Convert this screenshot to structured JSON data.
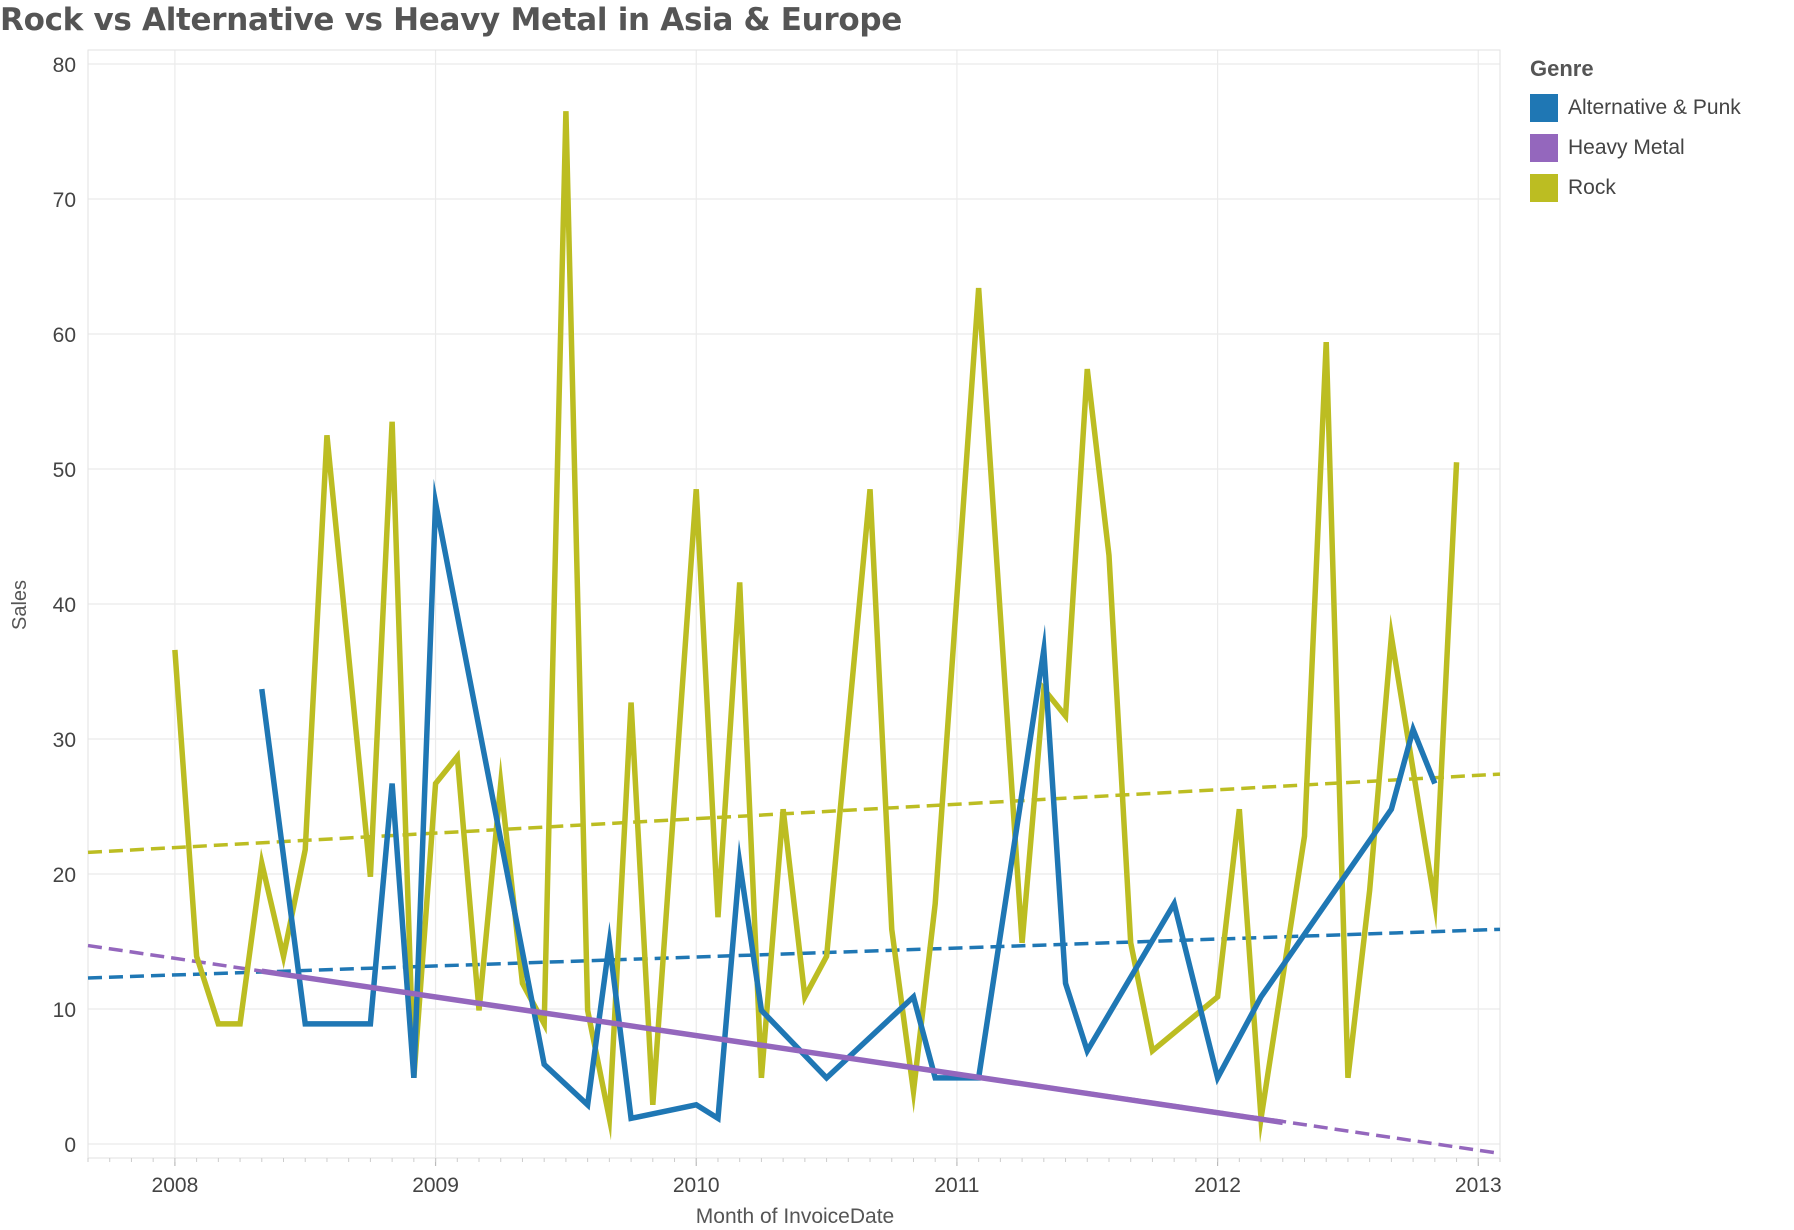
{
  "chart_data": {
    "type": "line",
    "title": "Rock vs Alternative vs Heavy Metal in Asia & Europe",
    "xlabel": "Month of InvoiceDate",
    "ylabel": "Sales",
    "x_ticks": [
      "2008",
      "2009",
      "2010",
      "2011",
      "2012",
      "2013"
    ],
    "y_ticks": [
      "0",
      "10",
      "20",
      "30",
      "40",
      "50",
      "60",
      "70",
      "80"
    ],
    "ylim": [
      0,
      80
    ],
    "xlim": [
      "2007-09",
      "2013-02"
    ],
    "grid": true,
    "legend": {
      "title": "Genre",
      "position": "right"
    },
    "series": [
      {
        "name": "Alternative & Punk",
        "color": "#1f77b4",
        "points": [
          [
            "2008-05",
            33.7
          ],
          [
            "2008-07",
            8.9
          ],
          [
            "2008-09",
            8.9
          ],
          [
            "2008-10",
            8.9
          ],
          [
            "2008-11",
            26.7
          ],
          [
            "2008-12",
            4.9
          ],
          [
            "2009-01",
            47.5
          ],
          [
            "2009-06",
            5.9
          ],
          [
            "2009-08",
            2.9
          ],
          [
            "2009-09",
            14.9
          ],
          [
            "2009-10",
            1.9
          ],
          [
            "2010-01",
            2.9
          ],
          [
            "2010-02",
            1.9
          ],
          [
            "2010-03",
            20.8
          ],
          [
            "2010-04",
            9.9
          ],
          [
            "2010-07",
            4.9
          ],
          [
            "2010-11",
            10.9
          ],
          [
            "2010-12",
            4.9
          ],
          [
            "2011-02",
            4.9
          ],
          [
            "2011-05",
            36.6
          ],
          [
            "2011-06",
            11.9
          ],
          [
            "2011-07",
            6.9
          ],
          [
            "2011-11",
            17.8
          ],
          [
            "2012-01",
            4.9
          ],
          [
            "2012-03",
            10.9
          ],
          [
            "2012-09",
            24.8
          ],
          [
            "2012-10",
            30.7
          ],
          [
            "2012-11",
            26.7
          ]
        ],
        "trend": {
          "start": [
            "2007-09",
            12.3
          ],
          "end": [
            "2013-02",
            15.9
          ]
        }
      },
      {
        "name": "Heavy Metal",
        "color": "#9467bd",
        "points": [
          [
            "2008-05",
            12.8
          ],
          [
            "2012-04",
            1.6
          ]
        ],
        "trend": {
          "start": [
            "2007-09",
            14.7
          ],
          "end": [
            "2013-02",
            -0.7
          ]
        }
      },
      {
        "name": "Rock",
        "color": "#bcbd22",
        "points": [
          [
            "2008-01",
            36.6
          ],
          [
            "2008-02",
            13.9
          ],
          [
            "2008-03",
            8.9
          ],
          [
            "2008-04",
            8.9
          ],
          [
            "2008-05",
            20.8
          ],
          [
            "2008-06",
            13.9
          ],
          [
            "2008-07",
            21.8
          ],
          [
            "2008-08",
            52.5
          ],
          [
            "2008-10",
            19.8
          ],
          [
            "2008-11",
            53.5
          ],
          [
            "2008-12",
            4.9
          ],
          [
            "2009-01",
            26.7
          ],
          [
            "2009-02",
            28.7
          ],
          [
            "2009-03",
            9.9
          ],
          [
            "2009-04",
            26.7
          ],
          [
            "2009-05",
            11.9
          ],
          [
            "2009-06",
            8.9
          ],
          [
            "2009-07",
            76.5
          ],
          [
            "2009-08",
            9.9
          ],
          [
            "2009-09",
            1.9
          ],
          [
            "2009-10",
            32.7
          ],
          [
            "2009-11",
            2.9
          ],
          [
            "2010-01",
            48.5
          ],
          [
            "2010-02",
            16.8
          ],
          [
            "2010-03",
            41.6
          ],
          [
            "2010-04",
            4.9
          ],
          [
            "2010-05",
            24.8
          ],
          [
            "2010-06",
            10.9
          ],
          [
            "2010-07",
            13.9
          ],
          [
            "2010-09",
            48.5
          ],
          [
            "2010-10",
            15.9
          ],
          [
            "2010-11",
            3.9
          ],
          [
            "2010-12",
            17.8
          ],
          [
            "2011-02",
            63.4
          ],
          [
            "2011-04",
            14.9
          ],
          [
            "2011-05",
            33.7
          ],
          [
            "2011-06",
            31.7
          ],
          [
            "2011-07",
            57.4
          ],
          [
            "2011-08",
            43.6
          ],
          [
            "2011-09",
            14.9
          ],
          [
            "2011-10",
            6.9
          ],
          [
            "2012-01",
            10.9
          ],
          [
            "2012-02",
            24.8
          ],
          [
            "2012-03",
            1.9
          ],
          [
            "2012-05",
            22.8
          ],
          [
            "2012-06",
            59.4
          ],
          [
            "2012-07",
            4.9
          ],
          [
            "2012-08",
            18.8
          ],
          [
            "2012-09",
            37.6
          ],
          [
            "2012-11",
            17.8
          ],
          [
            "2012-12",
            50.5
          ]
        ],
        "trend": {
          "start": [
            "2007-09",
            21.6
          ],
          "end": [
            "2013-02",
            27.4
          ]
        }
      }
    ]
  }
}
